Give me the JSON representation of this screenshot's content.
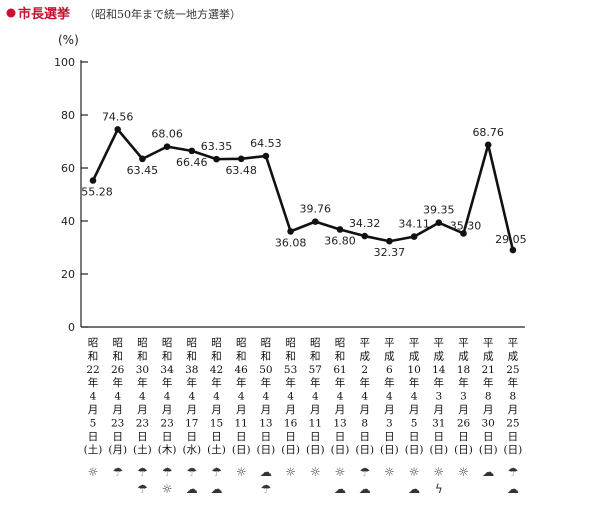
{
  "header": {
    "title": "市長選挙",
    "subtitle": "（昭和50年まで統一地方選挙）",
    "accent_color": "#c8102e"
  },
  "chart_data": {
    "type": "line",
    "unit_label": "(%)",
    "ylim": [
      0,
      100
    ],
    "yticks": [
      0,
      20,
      40,
      60,
      80,
      100
    ],
    "grid": false,
    "categories": [
      [
        "昭",
        "和",
        "22",
        "年",
        "4",
        "月",
        "5",
        "日",
        "(土)"
      ],
      [
        "昭",
        "和",
        "26",
        "年",
        "4",
        "月",
        "23",
        "日",
        "(月)"
      ],
      [
        "昭",
        "和",
        "30",
        "年",
        "4",
        "月",
        "23",
        "日",
        "(土)"
      ],
      [
        "昭",
        "和",
        "34",
        "年",
        "4",
        "月",
        "23",
        "日",
        "(木)"
      ],
      [
        "昭",
        "和",
        "38",
        "年",
        "4",
        "月",
        "17",
        "日",
        "(水)"
      ],
      [
        "昭",
        "和",
        "42",
        "年",
        "4",
        "月",
        "15",
        "日",
        "(土)"
      ],
      [
        "昭",
        "和",
        "46",
        "年",
        "4",
        "月",
        "11",
        "日",
        "(日)"
      ],
      [
        "昭",
        "和",
        "50",
        "年",
        "4",
        "月",
        "13",
        "日",
        "(日)"
      ],
      [
        "昭",
        "和",
        "53",
        "年",
        "4",
        "月",
        "16",
        "日",
        "(日)"
      ],
      [
        "昭",
        "和",
        "57",
        "年",
        "4",
        "月",
        "11",
        "日",
        "(日)"
      ],
      [
        "昭",
        "和",
        "61",
        "年",
        "4",
        "月",
        "13",
        "日",
        "(日)"
      ],
      [
        "平",
        "成",
        "2",
        "年",
        "4",
        "月",
        "8",
        "日",
        "(日)"
      ],
      [
        "平",
        "成",
        "6",
        "年",
        "4",
        "月",
        "3",
        "日",
        "(日)"
      ],
      [
        "平",
        "成",
        "10",
        "年",
        "4",
        "月",
        "5",
        "日",
        "(日)"
      ],
      [
        "平",
        "成",
        "14",
        "年",
        "3",
        "月",
        "31",
        "日",
        "(日)"
      ],
      [
        "平",
        "成",
        "18",
        "年",
        "3",
        "月",
        "26",
        "日",
        "(日)"
      ],
      [
        "平",
        "成",
        "21",
        "年",
        "8",
        "月",
        "30",
        "日",
        "(日)"
      ],
      [
        "平",
        "成",
        "25",
        "年",
        "8",
        "月",
        "25",
        "日",
        "(日)"
      ]
    ],
    "values": [
      55.28,
      74.56,
      63.45,
      68.06,
      66.46,
      63.35,
      63.48,
      64.53,
      36.08,
      39.76,
      36.8,
      34.32,
      32.37,
      34.11,
      39.35,
      35.3,
      68.76,
      29.05
    ],
    "labels": [
      "55.28",
      "74.56",
      "63.45",
      "68.06",
      "66.46",
      "63.35",
      "63.48",
      "64.53",
      "36.08",
      "39.76",
      "36.80",
      "34.32",
      "32.37",
      "34.11",
      "39.35",
      "35.30",
      "68.76",
      "29.05"
    ],
    "weather": [
      [
        "sun-icon"
      ],
      [
        "umbrella-icon"
      ],
      [
        "umbrella-icon",
        "umbrella-icon"
      ],
      [
        "umbrella-icon",
        "sun-icon"
      ],
      [
        "umbrella-icon",
        "cloud-icon"
      ],
      [
        "umbrella-icon",
        "cloud-icon"
      ],
      [
        "sun-icon"
      ],
      [
        "cloud-icon",
        "umbrella-icon"
      ],
      [
        "sun-icon"
      ],
      [
        "sun-icon"
      ],
      [
        "sun-icon",
        "cloud-icon"
      ],
      [
        "umbrella-icon",
        "cloud-icon"
      ],
      [
        "sun-icon"
      ],
      [
        "sun-icon",
        "cloud-icon"
      ],
      [
        "sun-icon",
        "lightning-icon"
      ],
      [
        "sun-icon"
      ],
      [
        "cloud-icon"
      ],
      [
        "umbrella-icon",
        "cloud-icon"
      ]
    ]
  }
}
